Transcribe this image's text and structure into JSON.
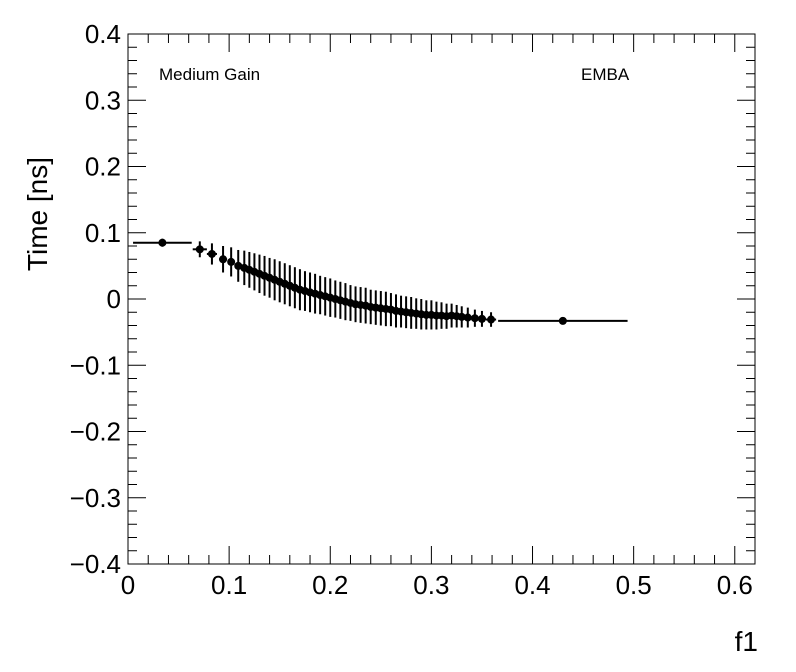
{
  "chart_data": {
    "type": "scatter",
    "xlabel": "f1",
    "ylabel": "Time [ns]",
    "xlim": [
      0,
      0.62
    ],
    "ylim": [
      -0.4,
      0.4
    ],
    "x_ticks": [
      "0",
      "0.1",
      "0.2",
      "0.3",
      "0.4",
      "0.5",
      "0.6"
    ],
    "y_ticks": [
      "−0.4",
      "−0.3",
      "−0.2",
      "−0.1",
      "0",
      "0.1",
      "0.2",
      "0.3",
      "0.4"
    ],
    "grid": false,
    "annotations": [
      "Medium Gain",
      "EMBA"
    ],
    "series": [
      {
        "points": [
          {
            "x": 0.034,
            "y": 0.085,
            "xerr": 0.029,
            "yerr": 0.006
          },
          {
            "x": 0.071,
            "y": 0.075,
            "xerr": 0.007,
            "yerr": 0.012
          },
          {
            "x": 0.083,
            "y": 0.068,
            "xerr": 0.005,
            "yerr": 0.016
          },
          {
            "x": 0.094,
            "y": 0.06,
            "xerr": 0.004,
            "yerr": 0.02
          },
          {
            "x": 0.102,
            "y": 0.056,
            "xerr": 0.003,
            "yerr": 0.022
          },
          {
            "x": 0.109,
            "y": 0.05,
            "xerr": 0.003,
            "yerr": 0.024
          },
          {
            "x": 0.115,
            "y": 0.047,
            "xerr": 0.002,
            "yerr": 0.026
          },
          {
            "x": 0.12,
            "y": 0.044,
            "xerr": 0.002,
            "yerr": 0.027
          },
          {
            "x": 0.125,
            "y": 0.041,
            "xerr": 0.002,
            "yerr": 0.028
          },
          {
            "x": 0.13,
            "y": 0.038,
            "xerr": 0.002,
            "yerr": 0.029
          },
          {
            "x": 0.135,
            "y": 0.035,
            "xerr": 0.002,
            "yerr": 0.03
          },
          {
            "x": 0.14,
            "y": 0.032,
            "xerr": 0.002,
            "yerr": 0.03
          },
          {
            "x": 0.145,
            "y": 0.029,
            "xerr": 0.002,
            "yerr": 0.031
          },
          {
            "x": 0.15,
            "y": 0.026,
            "xerr": 0.002,
            "yerr": 0.031
          },
          {
            "x": 0.155,
            "y": 0.023,
            "xerr": 0.002,
            "yerr": 0.031
          },
          {
            "x": 0.16,
            "y": 0.02,
            "xerr": 0.002,
            "yerr": 0.031
          },
          {
            "x": 0.165,
            "y": 0.017,
            "xerr": 0.002,
            "yerr": 0.031
          },
          {
            "x": 0.17,
            "y": 0.014,
            "xerr": 0.002,
            "yerr": 0.031
          },
          {
            "x": 0.175,
            "y": 0.012,
            "xerr": 0.002,
            "yerr": 0.03
          },
          {
            "x": 0.18,
            "y": 0.01,
            "xerr": 0.002,
            "yerr": 0.03
          },
          {
            "x": 0.185,
            "y": 0.008,
            "xerr": 0.002,
            "yerr": 0.03
          },
          {
            "x": 0.19,
            "y": 0.006,
            "xerr": 0.002,
            "yerr": 0.029
          },
          {
            "x": 0.195,
            "y": 0.004,
            "xerr": 0.002,
            "yerr": 0.029
          },
          {
            "x": 0.2,
            "y": 0.002,
            "xerr": 0.002,
            "yerr": 0.029
          },
          {
            "x": 0.205,
            "y": 0.0,
            "xerr": 0.002,
            "yerr": 0.028
          },
          {
            "x": 0.21,
            "y": -0.002,
            "xerr": 0.002,
            "yerr": 0.028
          },
          {
            "x": 0.215,
            "y": -0.004,
            "xerr": 0.002,
            "yerr": 0.028
          },
          {
            "x": 0.22,
            "y": -0.006,
            "xerr": 0.002,
            "yerr": 0.027
          },
          {
            "x": 0.225,
            "y": -0.008,
            "xerr": 0.002,
            "yerr": 0.027
          },
          {
            "x": 0.23,
            "y": -0.009,
            "xerr": 0.002,
            "yerr": 0.027
          },
          {
            "x": 0.235,
            "y": -0.01,
            "xerr": 0.002,
            "yerr": 0.027
          },
          {
            "x": 0.24,
            "y": -0.012,
            "xerr": 0.002,
            "yerr": 0.026
          },
          {
            "x": 0.245,
            "y": -0.013,
            "xerr": 0.002,
            "yerr": 0.026
          },
          {
            "x": 0.25,
            "y": -0.014,
            "xerr": 0.002,
            "yerr": 0.026
          },
          {
            "x": 0.255,
            "y": -0.015,
            "xerr": 0.002,
            "yerr": 0.026
          },
          {
            "x": 0.26,
            "y": -0.016,
            "xerr": 0.002,
            "yerr": 0.025
          },
          {
            "x": 0.265,
            "y": -0.018,
            "xerr": 0.002,
            "yerr": 0.025
          },
          {
            "x": 0.27,
            "y": -0.019,
            "xerr": 0.002,
            "yerr": 0.024
          },
          {
            "x": 0.275,
            "y": -0.02,
            "xerr": 0.002,
            "yerr": 0.024
          },
          {
            "x": 0.28,
            "y": -0.021,
            "xerr": 0.002,
            "yerr": 0.024
          },
          {
            "x": 0.285,
            "y": -0.022,
            "xerr": 0.002,
            "yerr": 0.023
          },
          {
            "x": 0.29,
            "y": -0.023,
            "xerr": 0.002,
            "yerr": 0.023
          },
          {
            "x": 0.295,
            "y": -0.024,
            "xerr": 0.002,
            "yerr": 0.022
          },
          {
            "x": 0.3,
            "y": -0.024,
            "xerr": 0.002,
            "yerr": 0.022
          },
          {
            "x": 0.305,
            "y": -0.025,
            "xerr": 0.002,
            "yerr": 0.021
          },
          {
            "x": 0.31,
            "y": -0.025,
            "xerr": 0.002,
            "yerr": 0.02
          },
          {
            "x": 0.315,
            "y": -0.026,
            "xerr": 0.002,
            "yerr": 0.019
          },
          {
            "x": 0.32,
            "y": -0.025,
            "xerr": 0.002,
            "yerr": 0.018
          },
          {
            "x": 0.325,
            "y": -0.026,
            "xerr": 0.002,
            "yerr": 0.017
          },
          {
            "x": 0.33,
            "y": -0.027,
            "xerr": 0.003,
            "yerr": 0.016
          },
          {
            "x": 0.336,
            "y": -0.028,
            "xerr": 0.003,
            "yerr": 0.015
          },
          {
            "x": 0.343,
            "y": -0.029,
            "xerr": 0.004,
            "yerr": 0.013
          },
          {
            "x": 0.35,
            "y": -0.03,
            "xerr": 0.004,
            "yerr": 0.012
          },
          {
            "x": 0.359,
            "y": -0.031,
            "xerr": 0.005,
            "yerr": 0.011
          },
          {
            "x": 0.43,
            "y": -0.033,
            "xerr": 0.064,
            "yerr": 0.004
          }
        ]
      }
    ]
  },
  "colors": {
    "marker": "#000000",
    "axis": "#000000",
    "background": "#ffffff"
  }
}
